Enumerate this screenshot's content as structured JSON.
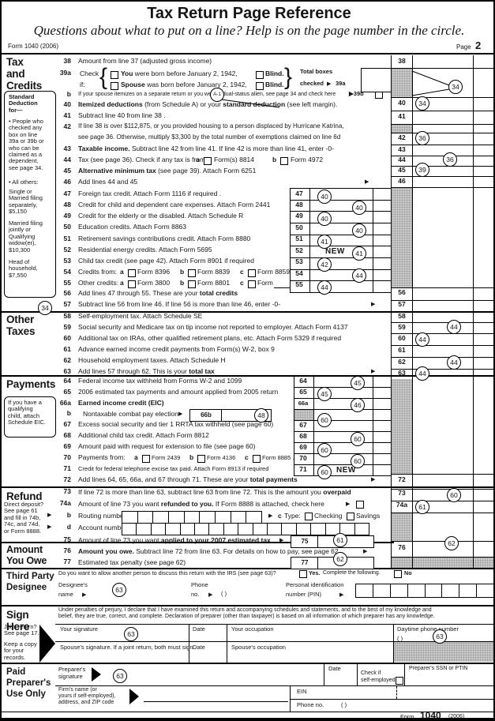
{
  "header": {
    "title": "Tax Return Page Reference",
    "subtitle": "Questions about what to put on a line? Help is on the page number in the circle.",
    "form_id": "Form 1040 (2006)",
    "page_label": "Page",
    "page_number": "2"
  },
  "footer": {
    "form_word": "Form",
    "form_number": "1040",
    "form_year": "(2006)"
  },
  "glyphs": {
    "arrow": "▶",
    "brace_open": "{",
    "brace_close": "}"
  },
  "margin": {
    "tax_credits": "Tax\nand\nCredits",
    "std_title": "Standard\nDeduction\nfor—",
    "std_b1": "• People who\nchecked any\nbox on line\n39a or 39b or\nwho can be\nclaimed as a\ndependent,\nsee page 34.",
    "std_b2": "• All others:",
    "std_single": "Single or\nMarried filing\nseparately,\n$5,150",
    "std_married": "Married filing\njointly or\nQualifying\nwidow(er),\n$10,300",
    "std_head": "Head of\nhousehold,\n$7,550",
    "other_taxes": "Other\nTaxes",
    "payments": "Payments",
    "eic_note": "If you have a\nqualifying\nchild, attach\nSchedule EIC.",
    "refund": "Refund",
    "direct_deposit": "Direct deposit?\nSee page 61\nand fill in 74b,\n74c, and 74d,\nor Form 8888.",
    "amount_owe": "Amount\nYou Owe",
    "third_party": "Third Party\nDesignee",
    "sign_here": "Sign\nHere",
    "joint_return": "Joint return?\nSee page 17.",
    "keep_copy": "Keep a copy\nfor your\nrecords.",
    "paid_preparer": "Paid\nPreparer's\nUse Only"
  },
  "lines": {
    "l38": {
      "num": "38",
      "text": "Amount from line 37 (adjusted gross income)"
    },
    "l39a": {
      "num": "39a",
      "check": "Check",
      "if_label": "if:",
      "you": "You",
      "you_rest": " were born before January 2, 1942,",
      "blind": "Blind.",
      "spouse": "Spouse",
      "spouse_rest": " was born before January 2, 1942,",
      "total_boxes": "Total boxes",
      "checked": "checked",
      "ref": "39a"
    },
    "l39b": {
      "num": "b",
      "text": "If your spouse itemizes on a separate return or you were a dual-status alien, see page 34 and check here",
      "ref": "▶39b"
    },
    "l40": {
      "num": "40",
      "rich": [
        {
          "t": "Itemized deductions",
          "b": true
        },
        {
          "t": " (from Schedule A) or your ",
          "b": false
        },
        {
          "t": "standard deduction",
          "b": true
        },
        {
          "t": " (see left margin).",
          "b": false
        }
      ]
    },
    "l41": {
      "num": "41",
      "text": "Subtract line 40 from line 38 ."
    },
    "l42": {
      "num": "42",
      "text1": "If line 38 is over $112,875, or you provided housing to a person displaced by Hurricane Katrina,",
      "text2": "see page 36. Otherwise, multiply $3,300 by the total number of exemptions claimed on line 6d"
    },
    "l43": {
      "num": "43",
      "rich": [
        {
          "t": "Taxable income.",
          "b": true
        },
        {
          "t": " Subtract line 42 from line 41. If line 42 is more than line 41, enter -0-",
          "b": false
        }
      ]
    },
    "l44": {
      "num": "44",
      "pre": "Tax (see page 36). Check if any tax is from:",
      "a": "a",
      "a_form": "Form(s) 8814",
      "b": "b",
      "b_form": "Form 4972"
    },
    "l45": {
      "num": "45",
      "rich": [
        {
          "t": "Alternative minimum tax",
          "b": true
        },
        {
          "t": " (see page 39). Attach Form 6251",
          "b": false
        }
      ]
    },
    "l46": {
      "num": "46",
      "text": "Add lines 44 and 45"
    },
    "l47": {
      "num": "47",
      "text": "Foreign tax credit. Attach Form 1116 if required ."
    },
    "l48": {
      "num": "48",
      "text": "Credit for child and dependent care expenses. Attach Form 2441"
    },
    "l49": {
      "num": "49",
      "text": "Credit for the elderly or the disabled. Attach Schedule R"
    },
    "l50": {
      "num": "50",
      "text": "Education credits. Attach Form 8863"
    },
    "l51": {
      "num": "51",
      "text": "Retirement savings contributions credit. Attach Form 8880"
    },
    "l52": {
      "num": "52",
      "text": "Residential energy credits. Attach Form 5695",
      "new": "NEW"
    },
    "l53": {
      "num": "53",
      "text": "Child tax credit (see page 42). Attach Form 8901 if required"
    },
    "l54": {
      "num": "54",
      "pre": "Credits from:",
      "a": "a",
      "a_form": "Form 8396",
      "b": "b",
      "b_form": "Form 8839",
      "c": "c",
      "c_form": "Form 8859"
    },
    "l55": {
      "num": "55",
      "pre": "Other credits:",
      "a": "a",
      "a_form": "Form 3800",
      "b": "b",
      "b_form": "Form 8801",
      "c": "c",
      "c_form": "Form"
    },
    "l56": {
      "num": "56",
      "rich": [
        {
          "t": "Add lines 47 through 55. These are your ",
          "b": false
        },
        {
          "t": "total credits",
          "b": true
        }
      ]
    },
    "l57": {
      "num": "57",
      "text": "Subtract line 56 from line 46. If line 56 is more than line 46, enter -0-"
    },
    "l58": {
      "num": "58",
      "text": "Self-employment tax. Attach Schedule SE"
    },
    "l59": {
      "num": "59",
      "text": "Social security and Medicare tax on tip income not reported to employer. Attach Form 4137"
    },
    "l60": {
      "num": "60",
      "text": "Additional tax on IRAs, other qualified retirement plans, etc. Attach Form 5329 if required"
    },
    "l61": {
      "num": "61",
      "text": "Advance earned income credit payments from Form(s) W-2, box 9"
    },
    "l62": {
      "num": "62",
      "text": "Household employment taxes. Attach Schedule H"
    },
    "l63": {
      "num": "63",
      "rich": [
        {
          "t": "Add lines 57 through 62. This is your ",
          "b": false
        },
        {
          "t": "total tax",
          "b": true
        }
      ]
    },
    "l64": {
      "num": "64",
      "text": "Federal income tax withheld from Forms W-2 and 1099"
    },
    "l65": {
      "num": "65",
      "text": "2006 estimated tax payments and amount applied from 2005 return"
    },
    "l66a": {
      "num": "66a",
      "text": "Earned income credit (EIC)"
    },
    "l66b": {
      "num": "b",
      "text": "Nontaxable combat pay election",
      "box_label": "66b"
    },
    "l67": {
      "num": "67",
      "text": "Excess social security and tier 1 RRTA tax withheld (see page 60)"
    },
    "l68": {
      "num": "68",
      "text": "Additional child tax credit. Attach Form 8812"
    },
    "l69": {
      "num": "69",
      "text": "Amount paid with request for extension to file (see page 60)"
    },
    "l70": {
      "num": "70",
      "pre": "Payments from:",
      "a": "a",
      "a_form": "Form 2439",
      "b": "b",
      "b_form": "Form 4136",
      "c": "c",
      "c_form": "Form 8885 ."
    },
    "l71": {
      "num": "71",
      "text": "Credit for federal telephone excise tax paid. Attach Form 8913 if required",
      "new": "NEW"
    },
    "l72": {
      "num": "72",
      "rich": [
        {
          "t": "Add lines 64, 65, 66a, and 67 through 71. These are your ",
          "b": false
        },
        {
          "t": "total payments",
          "b": true
        }
      ]
    },
    "l73": {
      "num": "73",
      "rich": [
        {
          "t": "If line 72 is more than line 63, subtract line 63 from line 72. This is the amount you ",
          "b": false
        },
        {
          "t": "overpaid",
          "b": true
        }
      ]
    },
    "l74a": {
      "num": "74a",
      "rich": [
        {
          "t": "Amount of line 73 you want ",
          "b": false
        },
        {
          "t": "refunded to you.",
          "b": true
        },
        {
          "t": " If Form 8888 is attached, check here",
          "b": false
        }
      ]
    },
    "l74b": {
      "num": "b",
      "label": "Routing number",
      "c": "c",
      "type": "Type:",
      "checking": "Checking",
      "savings": "Savings"
    },
    "l74d": {
      "num": "d",
      "label": "Account number"
    },
    "l75": {
      "num": "75",
      "rich": [
        {
          "t": "Amount of line 73 you want ",
          "b": false
        },
        {
          "t": "applied to your 2007 estimated tax",
          "b": true
        }
      ],
      "box_label": "75"
    },
    "l76": {
      "num": "76",
      "rich": [
        {
          "t": "Amount you owe.",
          "b": true
        },
        {
          "t": " Subtract line 72 from line 63. For details on how to pay, see page 62",
          "b": false
        }
      ]
    },
    "l77": {
      "num": "77",
      "text": "Estimated tax penalty (see page 62)",
      "box_label": "77"
    }
  },
  "third_party": {
    "question": "Do you want to allow another person to discuss this return with the IRS (see page 63)?",
    "yes": "Yes.",
    "yes_rest": "Complete the following.",
    "no": "No",
    "designee": "Designee's",
    "name": "name",
    "phone": "Phone",
    "no_label": "no.",
    "phone_paren": "(        )",
    "pin1": "Personal identification",
    "pin2": "number (PIN)"
  },
  "sign": {
    "perjury": "Under penalties of perjury, I declare that I have examined this return and accompanying schedules and statements, and to the best of my knowledge and\nbelief, they are true, correct, and complete. Declaration of preparer (other than taxpayer) is based on all information of which preparer has any knowledge.",
    "your_signature": "Your signature",
    "date": "Date",
    "your_occupation": "Your occupation",
    "daytime": "Daytime phone number",
    "daytime_paren": "(        )",
    "spouse_signature": "Spouse's signature. If a joint return, both must sign.",
    "spouse_occupation": "Spouse's occupation"
  },
  "preparer": {
    "sig1": "Preparer's",
    "sig2": "signature",
    "date": "Date",
    "check1": "Check if",
    "check2": "self-employed",
    "ssn": "Preparer's SSN or PTIN",
    "firm": "Firm's name (or\nyours if self-employed),\naddress, and ZIP code",
    "ein": "EIN",
    "phone": "Phone no.",
    "phone_paren": "(        )"
  },
  "circles": {
    "c39": "34",
    "c40": "34",
    "c42": "36",
    "c44": "36",
    "c45": "39",
    "c57m": "34",
    "c47": "40",
    "c48": "40",
    "c49": "40",
    "c50": "40",
    "c51": "41",
    "c52": "41",
    "c53": "42",
    "c54": "44",
    "c55": "44",
    "c59": "44",
    "c60": "44",
    "c62": "44",
    "c63": "44",
    "c64": "45",
    "c65": "45",
    "c66a": "46",
    "c66b": "48",
    "c67": "60",
    "c68": "60",
    "c69": "60",
    "c70": "60",
    "c71": "60",
    "c73": "60",
    "c74a": "61",
    "c75": "61",
    "c76": "62",
    "c77": "62",
    "cA1": "A-1",
    "c_designee": "63",
    "c_sig": "63",
    "c_daytime": "63",
    "c_preparer": "63"
  }
}
